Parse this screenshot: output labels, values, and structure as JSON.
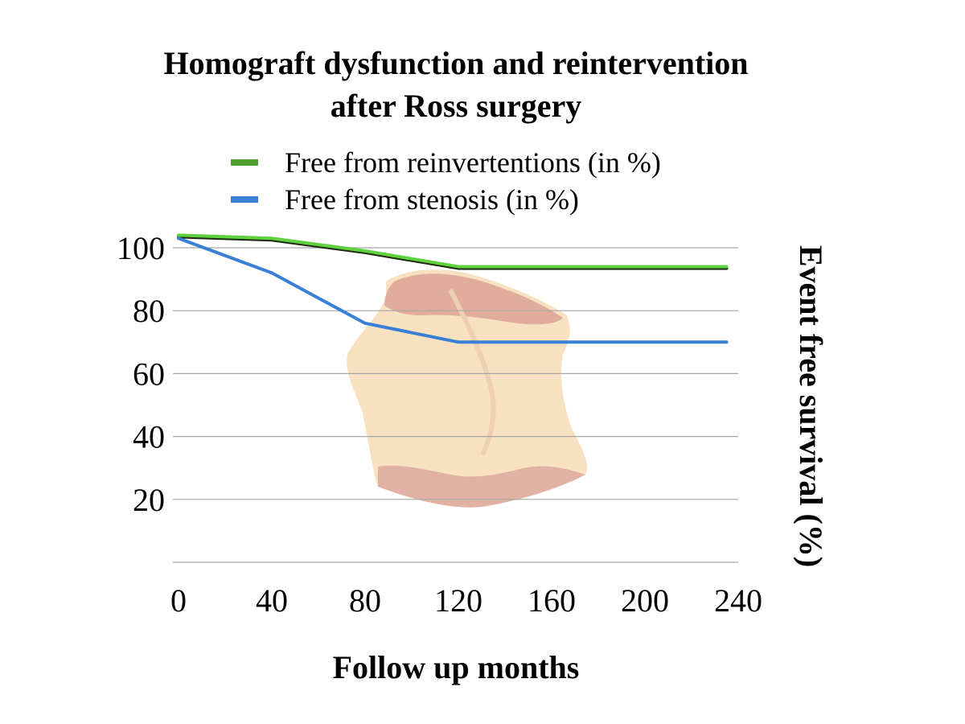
{
  "chart_data": {
    "type": "line",
    "title_lines": [
      "Homograft dysfunction and reintervention",
      "after Ross surgery"
    ],
    "xlabel": "Follow up months",
    "ylabel": "Event free survival (%)",
    "x_ticks": [
      0,
      40,
      80,
      120,
      160,
      200,
      240
    ],
    "y_ticks": [
      20,
      40,
      60,
      80,
      100
    ],
    "xlim": [
      0,
      240
    ],
    "ylim": [
      0,
      100
    ],
    "grid": true,
    "legend_position": "top",
    "series": [
      {
        "name": "Free from reinvertentions (in %)",
        "color": "#4f9e2e",
        "line_color": "#5fd13d",
        "x": [
          0,
          40,
          80,
          120,
          160,
          200,
          235
        ],
        "y": [
          104,
          103,
          99,
          94,
          94,
          94,
          94
        ]
      },
      {
        "name": "Free from stenosis (in %)",
        "color": "#3a7fd6",
        "line_color": "#3a7fd6",
        "x": [
          0,
          40,
          80,
          120,
          160,
          200,
          235
        ],
        "y": [
          103,
          92,
          76,
          70,
          70,
          70,
          70
        ]
      }
    ]
  }
}
